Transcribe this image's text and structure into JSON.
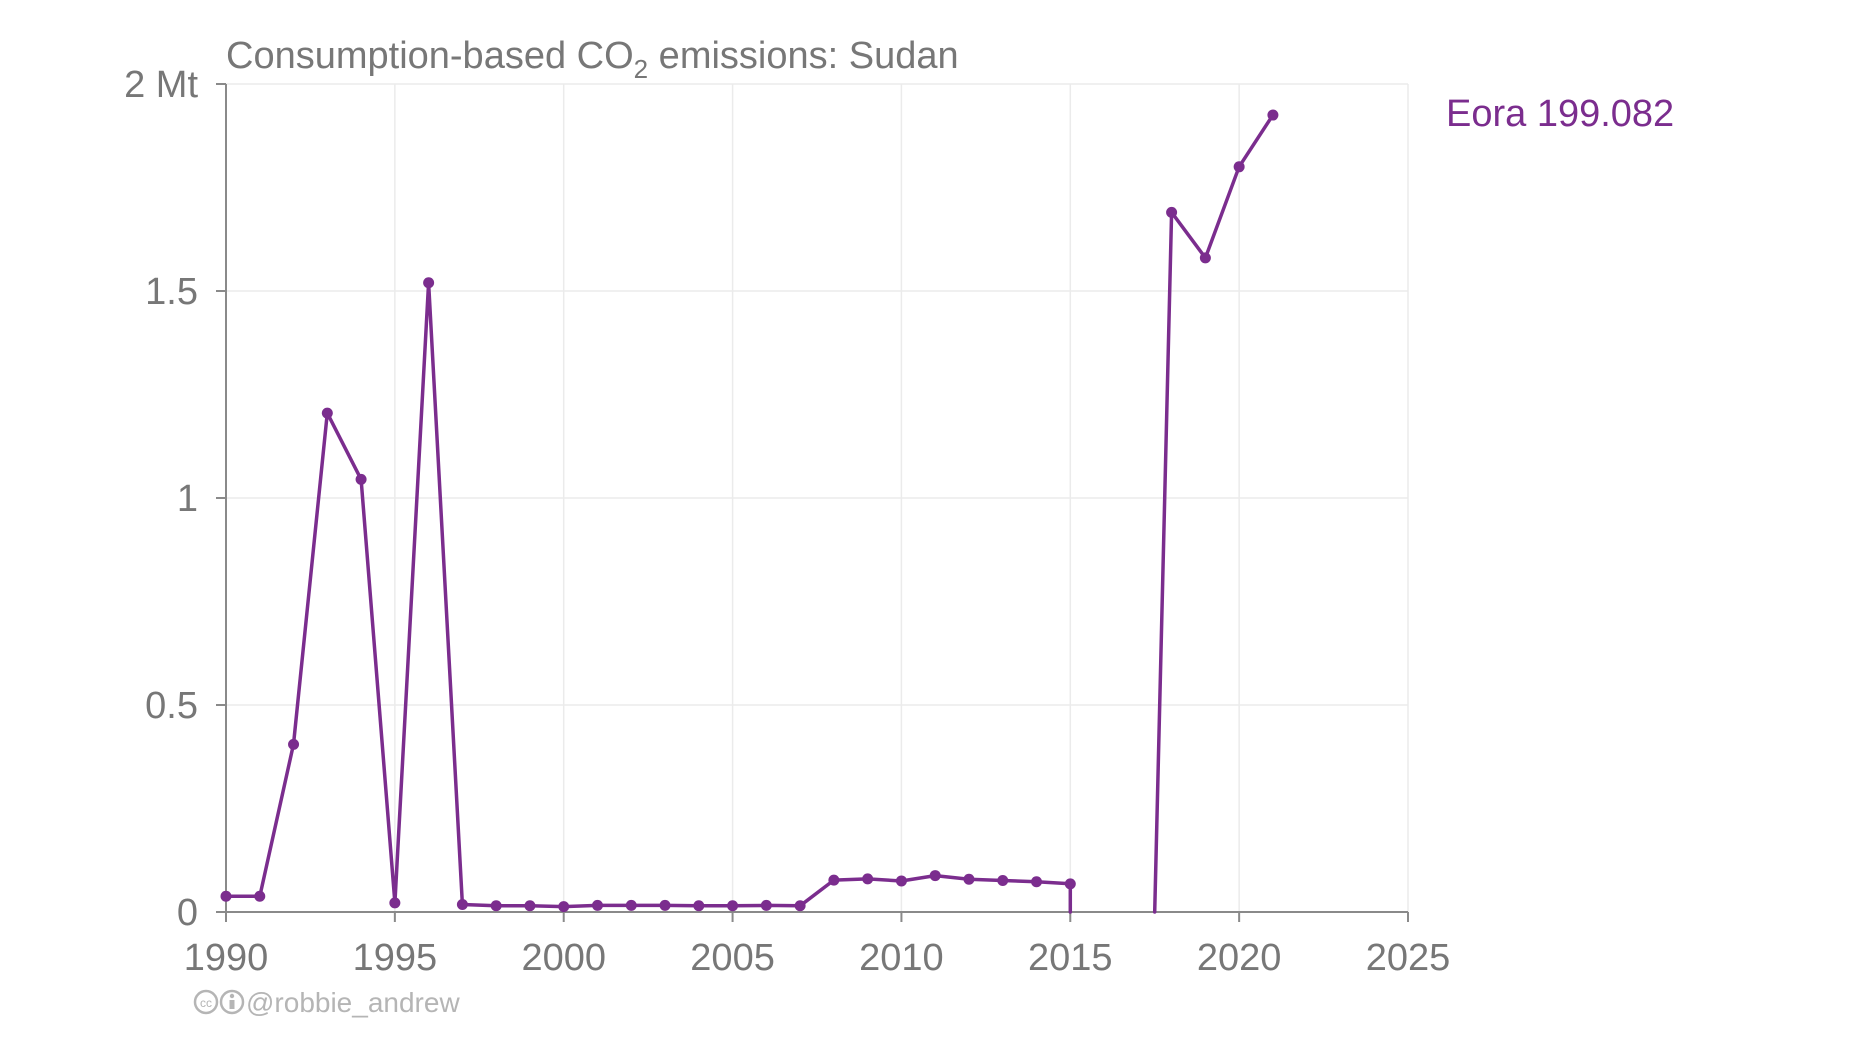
{
  "chart_data": {
    "type": "line",
    "title": {
      "prefix": "Consumption-based CO",
      "subscript": "2",
      "suffix": " emissions: Sudan"
    },
    "y_unit_label": "2 Mt",
    "xlim": [
      1990,
      2025
    ],
    "ylim": [
      0,
      2
    ],
    "x_ticks": [
      {
        "value": 1990,
        "label": "1990"
      },
      {
        "value": 1995,
        "label": "1995"
      },
      {
        "value": 2000,
        "label": "2000"
      },
      {
        "value": 2005,
        "label": "2005"
      },
      {
        "value": 2010,
        "label": "2010"
      },
      {
        "value": 2015,
        "label": "2015"
      },
      {
        "value": 2020,
        "label": "2020"
      },
      {
        "value": 2025,
        "label": "2025"
      }
    ],
    "y_ticks": [
      {
        "value": 0,
        "label": "0"
      },
      {
        "value": 0.5,
        "label": "0.5"
      },
      {
        "value": 1,
        "label": "1"
      },
      {
        "value": 1.5,
        "label": "1.5"
      },
      {
        "value": 2,
        "label": "2 Mt"
      }
    ],
    "grid": true,
    "series": [
      {
        "name": "Eora 199.082",
        "color": "#7b2d8e",
        "points": [
          [
            1990,
            0.038
          ],
          [
            1991,
            0.038
          ],
          [
            1992,
            0.405
          ],
          [
            1993,
            1.205
          ],
          [
            1994,
            1.045
          ],
          [
            1995,
            0.022
          ],
          [
            1996,
            1.52
          ],
          [
            1997,
            0.018
          ],
          [
            1998,
            0.015
          ],
          [
            1999,
            0.015
          ],
          [
            2000,
            0.013
          ],
          [
            2001,
            0.016
          ],
          [
            2002,
            0.016
          ],
          [
            2003,
            0.016
          ],
          [
            2004,
            0.015
          ],
          [
            2005,
            0.015
          ],
          [
            2006,
            0.016
          ],
          [
            2007,
            0.015
          ],
          [
            2008,
            0.077
          ],
          [
            2009,
            0.08
          ],
          [
            2010,
            0.075
          ],
          [
            2011,
            0.088
          ],
          [
            2012,
            0.079
          ],
          [
            2013,
            0.076
          ],
          [
            2014,
            0.073
          ],
          [
            2015,
            0.068
          ],
          [
            2015,
            0.0
          ],
          null,
          [
            2017.5,
            0.0
          ],
          [
            2018,
            1.69
          ],
          [
            2019,
            1.58
          ],
          [
            2020,
            1.8
          ],
          [
            2021,
            1.925
          ]
        ],
        "markers_skip_zero_endpoints": true
      }
    ]
  },
  "credit": {
    "icons": [
      "creative-commons-icon",
      "attribution-icon"
    ],
    "text": "@robbie_andrew"
  }
}
